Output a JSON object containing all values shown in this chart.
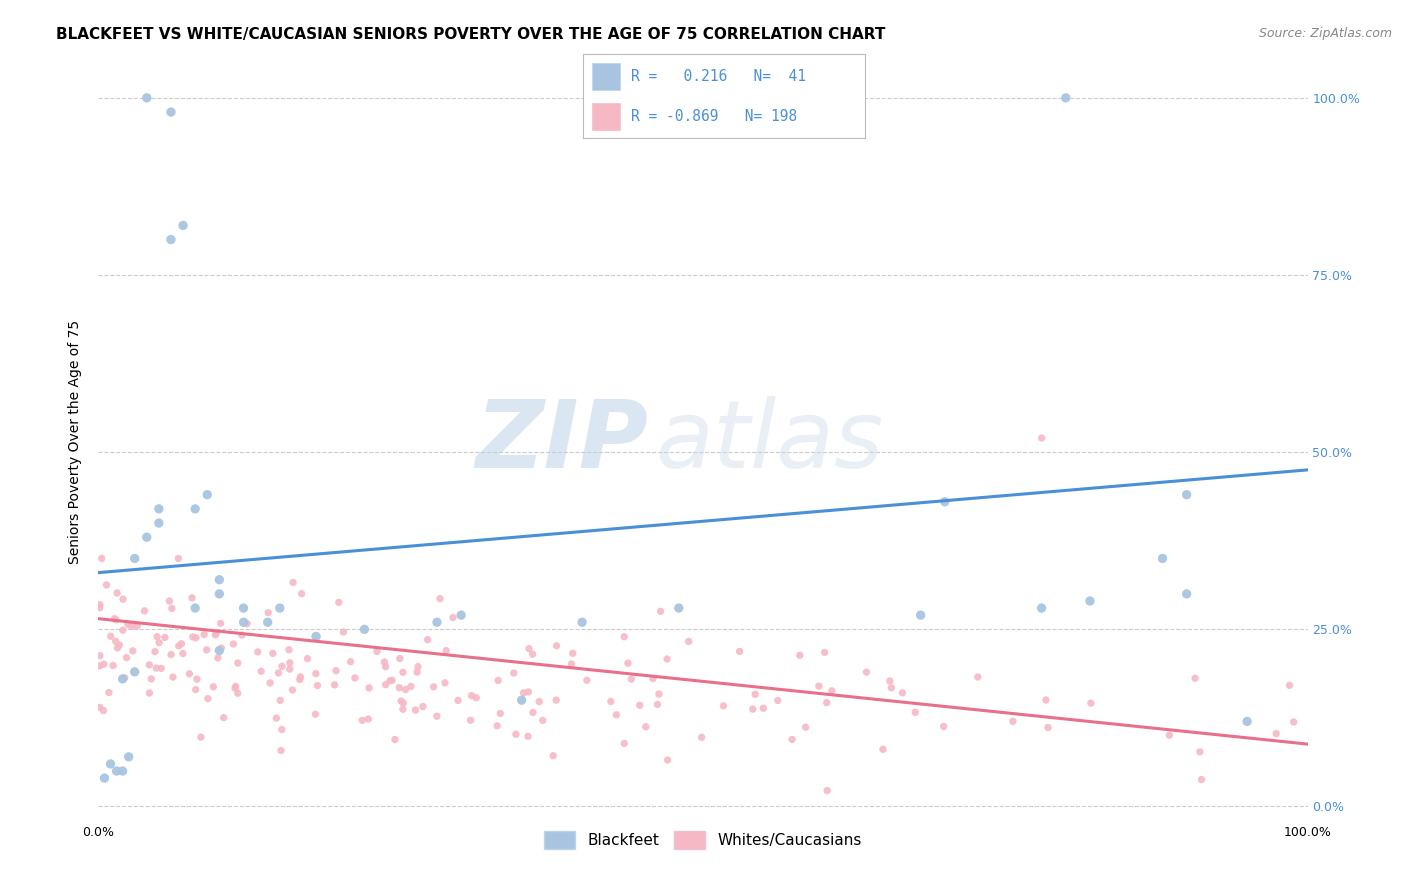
{
  "title": "BLACKFEET VS WHITE/CAUCASIAN SENIORS POVERTY OVER THE AGE OF 75 CORRELATION CHART",
  "source": "Source: ZipAtlas.com",
  "ylabel": "Seniors Poverty Over the Age of 75",
  "ytick_labels": [
    "0.0%",
    "25.0%",
    "50.0%",
    "75.0%",
    "100.0%"
  ],
  "ytick_values": [
    0.0,
    0.25,
    0.5,
    0.75,
    1.0
  ],
  "xlim": [
    0.0,
    1.0
  ],
  "ylim": [
    -0.02,
    1.05
  ],
  "blue_R": 0.216,
  "blue_N": 41,
  "pink_R": -0.869,
  "pink_N": 198,
  "blue_color": "#a8c4e0",
  "pink_color": "#f5b8c4",
  "blue_line_color": "#4a90d9",
  "pink_line_color": "#e8708a",
  "legend_label_blue": "Blackfeet",
  "legend_label_pink": "Whites/Caucasians",
  "watermark_zip": "ZIP",
  "watermark_atlas": "atlas",
  "background_color": "#ffffff",
  "grid_color": "#cccccc",
  "blue_line_x0": 0.0,
  "blue_line_x1": 1.0,
  "blue_line_y0": 0.33,
  "blue_line_y1": 0.475,
  "pink_line_x0": 0.0,
  "pink_line_x1": 1.0,
  "pink_line_y0": 0.265,
  "pink_line_y1": 0.088,
  "title_fontsize": 11,
  "source_fontsize": 9,
  "label_fontsize": 10,
  "tick_fontsize": 9,
  "legend_fontsize": 11
}
